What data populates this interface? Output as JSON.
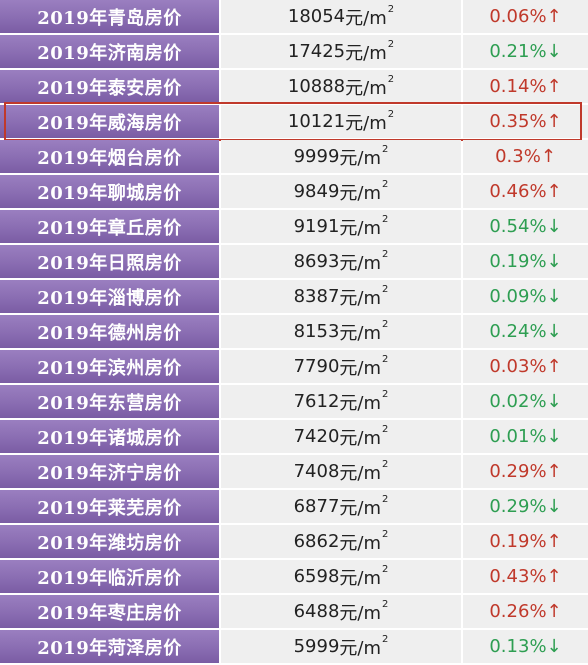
{
  "colors": {
    "city_bg": "#8a6db2",
    "cell_bg": "#efefef",
    "up": "#c0392b",
    "down": "#2e9e52",
    "highlight": "#c0392b"
  },
  "unit_base": "元/m",
  "unit_sup": "2",
  "rows": [
    {
      "city": "2019年青岛房价",
      "price": "18054",
      "change": "0.06%",
      "arrow": "↑",
      "dir": "up"
    },
    {
      "city": "2019年济南房价",
      "price": "17425",
      "change": "0.21%",
      "arrow": "↓",
      "dir": "down"
    },
    {
      "city": "2019年泰安房价",
      "price": "10888",
      "change": "0.14%",
      "arrow": "↑",
      "dir": "up"
    },
    {
      "city": "2019年威海房价",
      "price": "10121",
      "change": "0.35%",
      "arrow": "↑",
      "dir": "up",
      "highlight": true
    },
    {
      "city": "2019年烟台房价",
      "price": "9999",
      "change": "0.3%",
      "arrow": "↑",
      "dir": "up"
    },
    {
      "city": "2019年聊城房价",
      "price": "9849",
      "change": "0.46%",
      "arrow": "↑",
      "dir": "up"
    },
    {
      "city": "2019年章丘房价",
      "price": "9191",
      "change": "0.54%",
      "arrow": "↓",
      "dir": "down"
    },
    {
      "city": "2019年日照房价",
      "price": "8693",
      "change": "0.19%",
      "arrow": "↓",
      "dir": "down"
    },
    {
      "city": "2019年淄博房价",
      "price": "8387",
      "change": "0.09%",
      "arrow": "↓",
      "dir": "down"
    },
    {
      "city": "2019年德州房价",
      "price": "8153",
      "change": "0.24%",
      "arrow": "↓",
      "dir": "down"
    },
    {
      "city": "2019年滨州房价",
      "price": "7790",
      "change": "0.03%",
      "arrow": "↑",
      "dir": "up"
    },
    {
      "city": "2019年东营房价",
      "price": "7612",
      "change": "0.02%",
      "arrow": "↓",
      "dir": "down"
    },
    {
      "city": "2019年诸城房价",
      "price": "7420",
      "change": "0.01%",
      "arrow": "↓",
      "dir": "down"
    },
    {
      "city": "2019年济宁房价",
      "price": "7408",
      "change": "0.29%",
      "arrow": "↑",
      "dir": "up"
    },
    {
      "city": "2019年莱芜房价",
      "price": "6877",
      "change": "0.29%",
      "arrow": "↓",
      "dir": "down"
    },
    {
      "city": "2019年潍坊房价",
      "price": "6862",
      "change": "0.19%",
      "arrow": "↑",
      "dir": "up"
    },
    {
      "city": "2019年临沂房价",
      "price": "6598",
      "change": "0.43%",
      "arrow": "↑",
      "dir": "up"
    },
    {
      "city": "2019年枣庄房价",
      "price": "6488",
      "change": "0.26%",
      "arrow": "↑",
      "dir": "up"
    },
    {
      "city": "2019年菏泽房价",
      "price": "5999",
      "change": "0.13%",
      "arrow": "↓",
      "dir": "down"
    }
  ]
}
